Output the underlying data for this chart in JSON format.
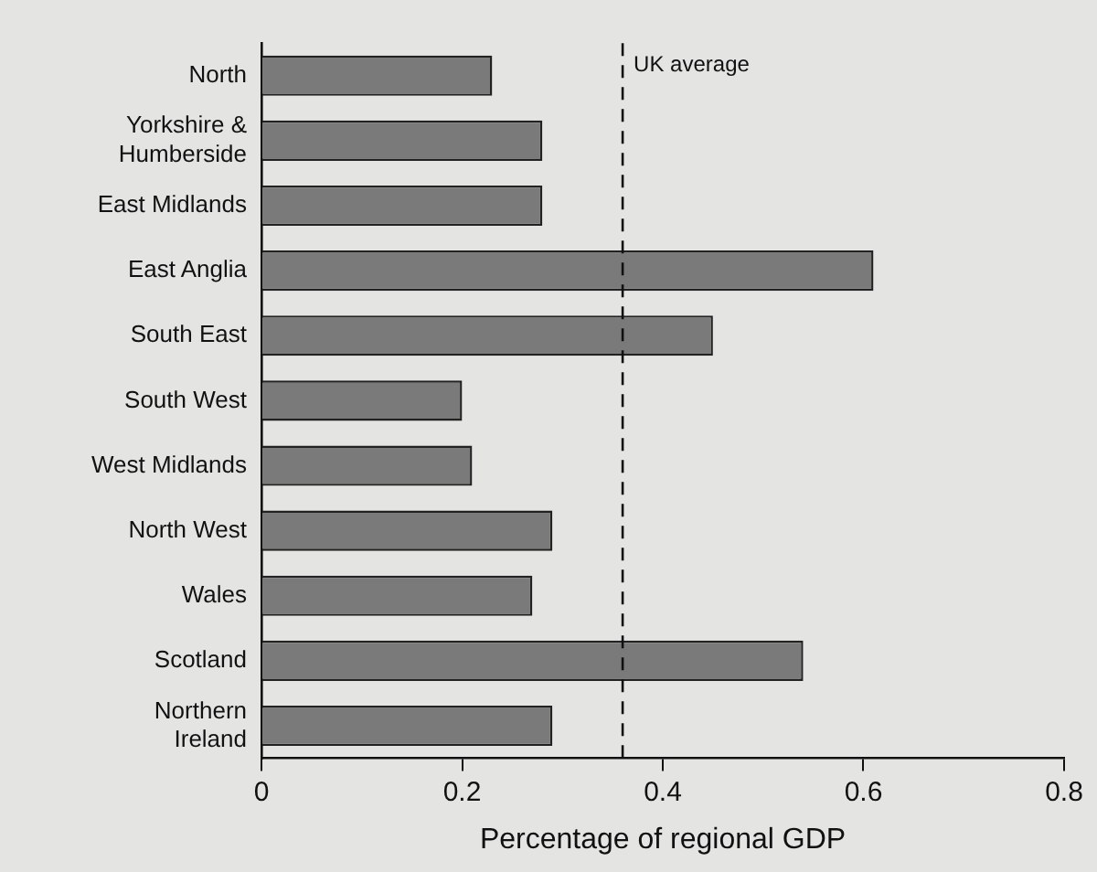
{
  "chart_data": {
    "type": "bar",
    "orientation": "horizontal",
    "xlabel": "Percentage of regional GDP",
    "categories": [
      "North",
      "Yorkshire & Humberside",
      "East Midlands",
      "East Anglia",
      "South East",
      "South West",
      "West Midlands",
      "North West",
      "Wales",
      "Scotland",
      "Northern Ireland"
    ],
    "values": [
      0.23,
      0.28,
      0.28,
      0.61,
      0.45,
      0.2,
      0.21,
      0.29,
      0.27,
      0.54,
      0.29
    ],
    "color": "#7a7a7a",
    "xlim": [
      0,
      0.8
    ],
    "xticks": [
      0,
      0.2,
      0.4,
      0.6,
      0.8
    ],
    "grid": false,
    "ref_lines": [
      {
        "axis": "x",
        "value": 0.36,
        "label": "UK average",
        "color": "#111111",
        "line_style": "dashed"
      }
    ]
  }
}
